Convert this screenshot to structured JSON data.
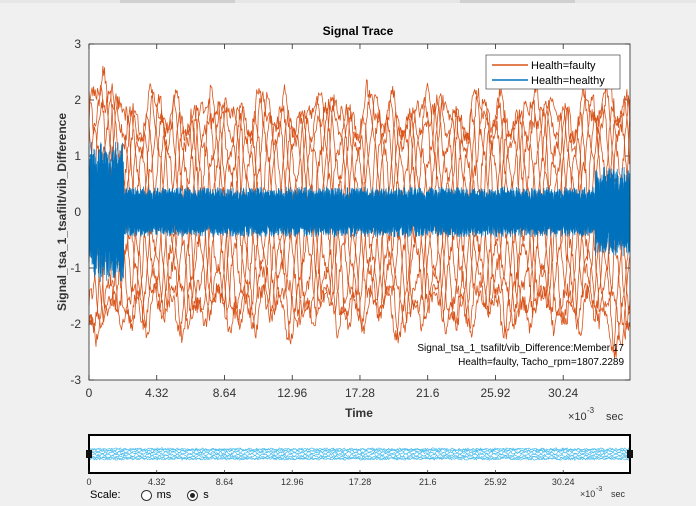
{
  "chart_data": [
    {
      "type": "line",
      "title": "Signal Trace",
      "xlabel": "Time",
      "ylabel": "Signal_tsa_1_tsafilt/vib_Difference",
      "x_unit_label": "×10",
      "x_unit_exp": "-3",
      "x_unit": "sec",
      "xlim": [
        0,
        34.5
      ],
      "ylim": [
        -3,
        3
      ],
      "xticks": [
        0,
        4.32,
        8.64,
        12.96,
        17.28,
        21.6,
        25.92,
        30.24
      ],
      "xtick_labels": [
        "0",
        "4.32",
        "8.64",
        "12.96",
        "17.28",
        "21.6",
        "25.92",
        "30.24"
      ],
      "yticks": [
        -3,
        -2,
        -1,
        0,
        1,
        2,
        3
      ],
      "ytick_labels": [
        "-3",
        "-2",
        "-1",
        "0",
        "1",
        "2",
        "3"
      ],
      "legend": {
        "position": "top-right",
        "entries": [
          {
            "label": "Health=faulty",
            "color": "#d95319"
          },
          {
            "label": "Health=healthy",
            "color": "#0072bd"
          }
        ]
      },
      "annotation": {
        "line1": "Signal_tsa_1_tsafilt/vib_Difference:Member 17",
        "line2": "Health=faulty, Tacho_rpm=1807.2289"
      },
      "series": [
        {
          "name": "Health=faulty",
          "color": "#d95319",
          "traces": 10,
          "dominant_cycles": 10,
          "amplitude_approx": 2.0
        },
        {
          "name": "Health=healthy",
          "color": "#0072bd",
          "traces": 10,
          "amplitude_approx": 0.3
        }
      ]
    },
    {
      "type": "line",
      "role": "overview-panner",
      "xticks": [
        0,
        4.32,
        8.64,
        12.96,
        17.28,
        21.6,
        25.92,
        30.24
      ],
      "xtick_labels": [
        "0",
        "4.32",
        "8.64",
        "12.96",
        "17.28",
        "21.6",
        "25.92",
        "30.24"
      ],
      "x_unit_label": "×10",
      "x_unit_exp": "-3",
      "x_unit": "sec",
      "color": "#4dbeee"
    }
  ],
  "scale": {
    "label": "Scale:",
    "options": [
      {
        "label": "ms",
        "checked": false
      },
      {
        "label": "s",
        "checked": true
      }
    ]
  }
}
